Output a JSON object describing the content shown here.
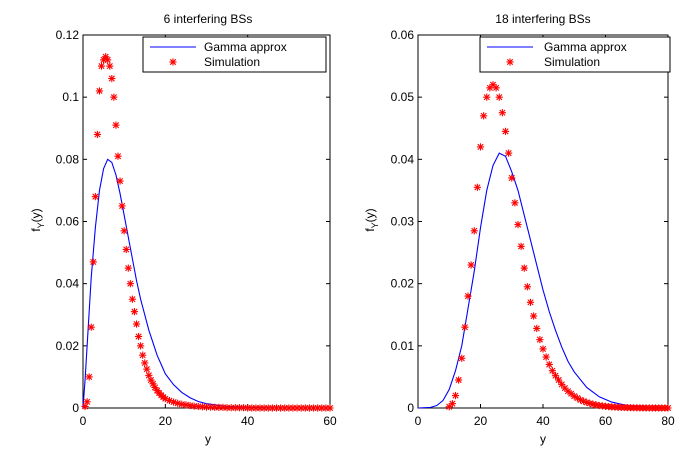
{
  "chart_data": [
    {
      "type": "scatter",
      "title": "6 interfering BSs",
      "xlabel": "y",
      "ylabel_main": "f",
      "ylabel_sub": "Y",
      "ylabel_tail": "(y)",
      "xlim": [
        0,
        60
      ],
      "ylim": [
        0,
        0.12
      ],
      "xticks": [
        0,
        20,
        40,
        60
      ],
      "xtick_labels": [
        "0",
        "20",
        "40",
        "60"
      ],
      "yticks": [
        0,
        0.02,
        0.04,
        0.06,
        0.08,
        0.1,
        0.12
      ],
      "ytick_labels": [
        "0",
        "0.02",
        "0.04",
        "0.06",
        "0.08",
        "0.1",
        "0.12"
      ],
      "grid": false,
      "legend_position": "top-right",
      "series": [
        {
          "name": "Gamma approx",
          "kind": "line",
          "color": "#0000ff",
          "x": [
            0,
            0.5,
            1,
            1.5,
            2,
            3,
            4,
            5,
            6,
            7,
            8,
            9,
            10,
            11,
            12,
            13,
            14,
            15,
            16,
            17,
            18,
            19,
            20,
            22,
            24,
            26,
            28,
            30,
            35,
            40,
            45,
            50,
            55,
            60
          ],
          "y": [
            0,
            0.009,
            0.02,
            0.031,
            0.042,
            0.058,
            0.07,
            0.077,
            0.08,
            0.079,
            0.075,
            0.069,
            0.062,
            0.055,
            0.048,
            0.041,
            0.035,
            0.03,
            0.025,
            0.021,
            0.017,
            0.014,
            0.011,
            0.0075,
            0.005,
            0.0033,
            0.0021,
            0.0014,
            0.0005,
            0.0002,
            8e-05,
            3e-05,
            1e-05,
            0
          ]
        },
        {
          "name": "Simulation",
          "kind": "scatter",
          "color": "#ff0000",
          "x": [
            0.5,
            1,
            1.5,
            2,
            2.5,
            3,
            3.5,
            4,
            4.5,
            5,
            5.5,
            6,
            6.5,
            7,
            7.5,
            8,
            8.5,
            9,
            9.5,
            10,
            10.5,
            11,
            11.5,
            12,
            12.5,
            13,
            13.5,
            14,
            14.5,
            15,
            15.5,
            16,
            16.5,
            17,
            17.5,
            18,
            18.5,
            19,
            19.5,
            20,
            21,
            22,
            23,
            24,
            25,
            26,
            27,
            28,
            29,
            30,
            31,
            32,
            33,
            34,
            35,
            36,
            37,
            38,
            39,
            40,
            41,
            42,
            43,
            44,
            45,
            46,
            47,
            48,
            49,
            50,
            51,
            52,
            53,
            54,
            55,
            56,
            57,
            58,
            59,
            60
          ],
          "y": [
            0.0005,
            0.002,
            0.01,
            0.026,
            0.047,
            0.068,
            0.088,
            0.102,
            0.11,
            0.112,
            0.113,
            0.112,
            0.11,
            0.106,
            0.1,
            0.091,
            0.081,
            0.073,
            0.065,
            0.057,
            0.051,
            0.045,
            0.04,
            0.035,
            0.031,
            0.027,
            0.023,
            0.02,
            0.017,
            0.0145,
            0.0125,
            0.0105,
            0.009,
            0.0078,
            0.0066,
            0.0056,
            0.0048,
            0.0041,
            0.0035,
            0.003,
            0.0024,
            0.0019,
            0.0015,
            0.0012,
            0.001,
            0.0008,
            0.0006,
            0.0005,
            0.0004,
            0.0003,
            0.0003,
            0.0002,
            0.0002,
            0.0002,
            0.0001,
            0.0001,
            0.0001,
            0.0001,
            0.0001,
            0,
            0,
            0,
            0,
            0,
            0,
            0,
            0,
            0,
            0,
            0,
            0,
            0,
            0,
            0,
            0,
            0,
            0,
            0,
            0,
            0
          ]
        }
      ]
    },
    {
      "type": "scatter",
      "title": "18 interfering BSs",
      "xlabel": "y",
      "ylabel_main": "f",
      "ylabel_sub": "Y",
      "ylabel_tail": "(y)",
      "xlim": [
        0,
        80
      ],
      "ylim": [
        0,
        0.06
      ],
      "xticks": [
        0,
        20,
        40,
        60,
        80
      ],
      "xtick_labels": [
        "0",
        "20",
        "40",
        "60",
        "80"
      ],
      "yticks": [
        0,
        0.01,
        0.02,
        0.03,
        0.04,
        0.05,
        0.06
      ],
      "ytick_labels": [
        "0",
        "0.01",
        "0.02",
        "0.03",
        "0.04",
        "0.05",
        "0.06"
      ],
      "grid": false,
      "legend_position": "top-right",
      "series": [
        {
          "name": "Gamma approx",
          "kind": "line",
          "color": "#0000ff",
          "x": [
            0,
            4,
            6,
            8,
            10,
            12,
            14,
            16,
            18,
            20,
            22,
            24,
            26,
            28,
            30,
            32,
            34,
            36,
            38,
            40,
            42,
            44,
            46,
            48,
            50,
            54,
            58,
            62,
            66,
            70,
            74,
            78,
            80
          ],
          "y": [
            0,
            0.0001,
            0.0004,
            0.0012,
            0.003,
            0.006,
            0.01,
            0.016,
            0.022,
            0.029,
            0.035,
            0.039,
            0.041,
            0.0405,
            0.038,
            0.035,
            0.031,
            0.027,
            0.023,
            0.019,
            0.0155,
            0.0125,
            0.0098,
            0.0075,
            0.0058,
            0.0033,
            0.0018,
            0.00095,
            0.0005,
            0.00025,
            0.00012,
            6e-05,
            4e-05
          ]
        },
        {
          "name": "Simulation",
          "kind": "scatter",
          "color": "#ff0000",
          "x": [
            10,
            11,
            12,
            13,
            14,
            15,
            16,
            17,
            18,
            19,
            20,
            21,
            22,
            23,
            24,
            25,
            26,
            27,
            28,
            29,
            30,
            31,
            32,
            33,
            34,
            35,
            36,
            37,
            38,
            39,
            40,
            41,
            42,
            43,
            44,
            45,
            46,
            47,
            48,
            49,
            50,
            51,
            52,
            53,
            54,
            55,
            56,
            57,
            58,
            59,
            60,
            61,
            62,
            63,
            64,
            65,
            66,
            67,
            68,
            69,
            70,
            71,
            72,
            73,
            74,
            75,
            76,
            77,
            78,
            79,
            80
          ],
          "y": [
            0.0002,
            0.0007,
            0.002,
            0.0045,
            0.008,
            0.013,
            0.018,
            0.023,
            0.0285,
            0.0355,
            0.042,
            0.047,
            0.05,
            0.0515,
            0.052,
            0.0515,
            0.05,
            0.0475,
            0.0445,
            0.041,
            0.037,
            0.033,
            0.0295,
            0.026,
            0.0225,
            0.0195,
            0.017,
            0.0148,
            0.0128,
            0.011,
            0.0095,
            0.0082,
            0.007,
            0.006,
            0.0052,
            0.0045,
            0.0038,
            0.0032,
            0.0027,
            0.0023,
            0.0019,
            0.0016,
            0.0013,
            0.0011,
            0.0009,
            0.00075,
            0.0006,
            0.0005,
            0.0004,
            0.00033,
            0.00027,
            0.00022,
            0.00018,
            0.00015,
            0.00012,
            0.0001,
            8e-05,
            6e-05,
            5e-05,
            4e-05,
            3e-05,
            2e-05,
            2e-05,
            1e-05,
            1e-05,
            0,
            0,
            0,
            0,
            0,
            0
          ]
        }
      ]
    }
  ]
}
